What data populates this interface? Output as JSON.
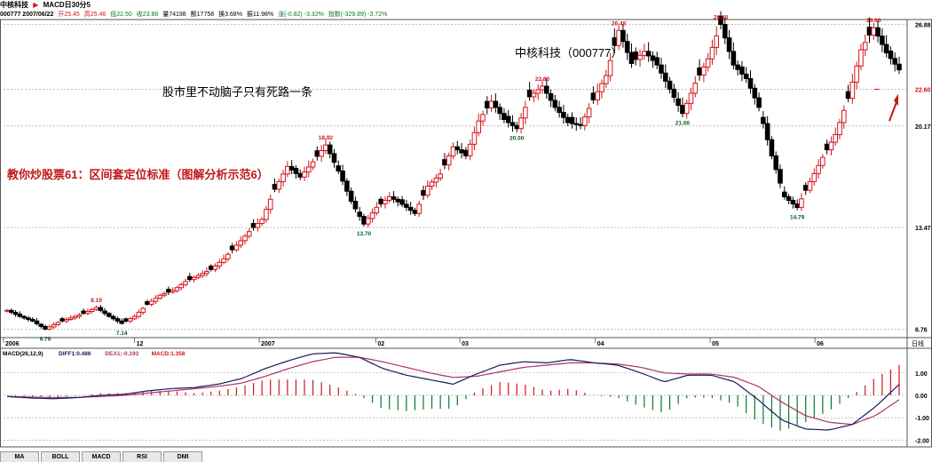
{
  "header": {
    "stock_name": "中核科技",
    "arrow": "▶",
    "indicator_title": "MACD日30分5",
    "info": [
      {
        "text": "000777 2007/06/22",
        "color": "#000000"
      },
      {
        "text": "开25.45",
        "color": "#d4141a"
      },
      {
        "text": "高25.46",
        "color": "#d4141a"
      },
      {
        "text": "低22.50",
        "color": "#0a7a2a"
      },
      {
        "text": "收23.88",
        "color": "#0a7a2a"
      },
      {
        "text": "量74198",
        "color": "#000000"
      },
      {
        "text": "额17758",
        "color": "#000000"
      },
      {
        "text": "换3.68%",
        "color": "#000000"
      },
      {
        "text": "振11.98%",
        "color": "#000000"
      },
      {
        "text": "涨(-0.82) -3.32%",
        "color": "#0a7a2a"
      },
      {
        "text": "指数(-329.89) -3.72%",
        "color": "#0a7a2a"
      }
    ]
  },
  "annotations": {
    "stock_title": "中核科技（000777）",
    "slogan": "股市里不动脑子只有死路一条",
    "lesson": "教你炒股票61：区间套定位标准（图解分析示范6）"
  },
  "colors": {
    "up": "#d4141a",
    "down": "#000000",
    "lesson": "#c01818",
    "dif": "#1a1a5c",
    "dea": "#b0306a",
    "macd_up": "#d4141a",
    "macd_down": "#0a7a2a",
    "grid": "#9a9a9a"
  },
  "chart_data": [
    {
      "type": "candlestick",
      "ylim": [
        6.2,
        27.2
      ],
      "y_ticks": [
        "26.88",
        "22.60",
        "20.17",
        "13.47",
        "6.76"
      ],
      "tick_values": [
        26.88,
        22.6,
        20.17,
        13.47,
        6.76
      ],
      "x_labels": [
        "2006",
        "12",
        "2007",
        "02",
        "03",
        "04",
        "05",
        "06"
      ],
      "x_unit": "日线",
      "price_labels": [
        {
          "text": "6.76",
          "value": 6.76,
          "low": true
        },
        {
          "text": "8.19",
          "value": 8.19,
          "low": false
        },
        {
          "text": "7.14",
          "value": 7.14,
          "low": true
        },
        {
          "text": "18.92",
          "value": 18.92,
          "low": false
        },
        {
          "text": "13.70",
          "value": 13.7,
          "low": true
        },
        {
          "text": "22.80",
          "value": 22.8,
          "low": false
        },
        {
          "text": "20.00",
          "value": 20.0,
          "low": true
        },
        {
          "text": "26.48",
          "value": 26.48,
          "low": false
        },
        {
          "text": "21.00",
          "value": 21.0,
          "low": true
        },
        {
          "text": "26.88",
          "value": 26.88,
          "low": false
        },
        {
          "text": "14.79",
          "value": 14.79,
          "low": true
        },
        {
          "text": "26.66",
          "value": 26.66,
          "low": false
        }
      ],
      "pivots": [
        8.0,
        7.6,
        7.3,
        6.76,
        7.2,
        7.5,
        7.8,
        8.19,
        7.6,
        7.14,
        7.6,
        8.4,
        9.0,
        9.3,
        9.9,
        10.3,
        10.7,
        11.4,
        12.3,
        13.2,
        14.0,
        16.0,
        17.5,
        16.8,
        17.8,
        18.92,
        17.2,
        15.2,
        13.7,
        14.8,
        15.5,
        15.0,
        14.4,
        16.2,
        17.0,
        18.8,
        18.2,
        20.5,
        21.8,
        20.6,
        20.0,
        22.1,
        22.8,
        21.4,
        20.4,
        20.2,
        21.9,
        23.5,
        26.48,
        24.3,
        25.1,
        24.2,
        22.6,
        21.0,
        23.0,
        24.6,
        26.88,
        24.2,
        23.3,
        21.4,
        18.2,
        15.5,
        14.79,
        16.5,
        18.1,
        19.6,
        22.0,
        25.2,
        26.66,
        25.0,
        23.88
      ]
    },
    {
      "type": "line",
      "title": "MACD(26,12,9)",
      "legend": [
        {
          "text": "DIFF1:0.486",
          "color": "#1a1a5c"
        },
        {
          "text": "DEA1:-0.193",
          "color": "#b0306a"
        },
        {
          "text": "MACD:1.358",
          "color": "#d4141a"
        }
      ],
      "ylim": [
        -2.3,
        2.1
      ],
      "y_ticks": [
        "1.00",
        "0.00",
        "-1.00",
        "-2.00"
      ],
      "tick_values": [
        1,
        0,
        -1,
        -2
      ],
      "diff_pivots": [
        -0.05,
        -0.12,
        -0.15,
        -0.1,
        0.0,
        0.05,
        0.2,
        0.3,
        0.35,
        0.5,
        0.75,
        1.2,
        1.55,
        1.85,
        1.9,
        1.7,
        1.2,
        0.9,
        0.7,
        0.5,
        0.95,
        1.35,
        1.5,
        1.45,
        1.6,
        1.45,
        1.35,
        1.0,
        0.6,
        0.9,
        0.9,
        0.6,
        -0.2,
        -1.1,
        -1.5,
        -1.55,
        -1.3,
        -0.5,
        0.486
      ],
      "dea_pivots": [
        -0.05,
        -0.08,
        -0.1,
        -0.09,
        -0.05,
        0.0,
        0.1,
        0.2,
        0.3,
        0.4,
        0.55,
        0.85,
        1.2,
        1.5,
        1.7,
        1.7,
        1.5,
        1.25,
        1.0,
        0.8,
        0.85,
        1.05,
        1.25,
        1.35,
        1.45,
        1.45,
        1.4,
        1.25,
        1.0,
        0.95,
        0.95,
        0.8,
        0.4,
        -0.3,
        -0.9,
        -1.2,
        -1.3,
        -0.9,
        -0.193
      ]
    }
  ],
  "tabs": [
    "MA",
    "BOLL",
    "MACD",
    "RSI",
    "DMI"
  ]
}
